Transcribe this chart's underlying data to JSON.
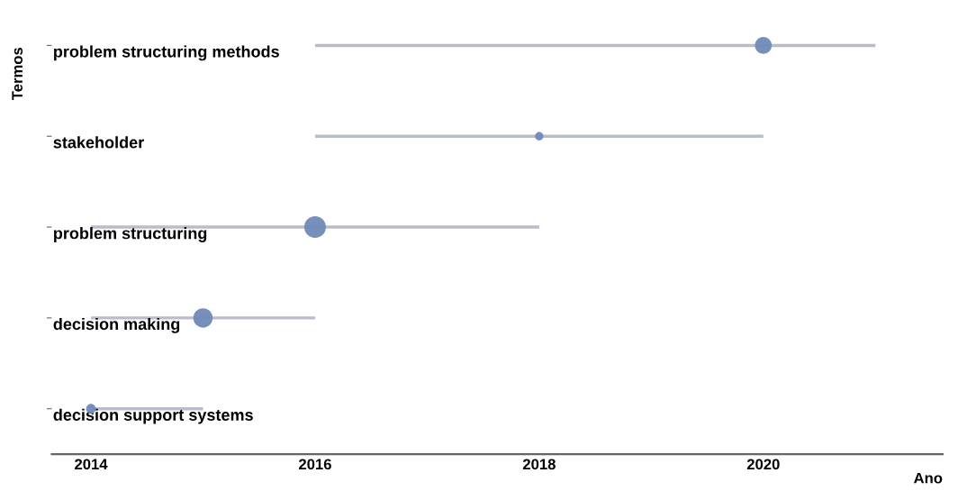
{
  "chart_data": {
    "type": "bubble",
    "orientation": "horizontal",
    "xlabel": "Ano",
    "ylabel": "Termos",
    "categories": [
      "problem structuring methods",
      "stakeholder",
      "problem structuring",
      "decision making",
      "decision support systems"
    ],
    "color": "#6f8ab7",
    "values": [
      2020,
      2018,
      2016,
      2015,
      2014
    ],
    "errors": [
      [
        2016,
        2021
      ],
      [
        2016,
        2020
      ],
      [
        2014,
        2018
      ],
      [
        2014,
        2016
      ],
      [
        2014,
        2015
      ]
    ],
    "sizes": [
      0.6,
      0.15,
      1,
      0.8,
      0.2
    ],
    "xlim": [
      2013.65,
      2021.6
    ],
    "xticks": [
      2014,
      2016,
      2018,
      2020
    ],
    "grid": false,
    "legend": false
  }
}
